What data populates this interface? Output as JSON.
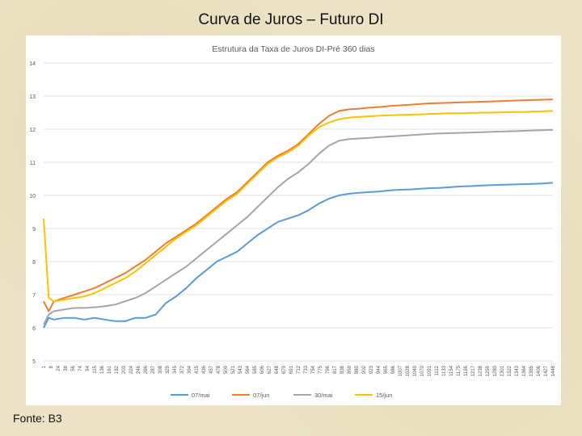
{
  "slide": {
    "title": "Curva de Juros – Futuro DI",
    "footer": "Fonte: B3"
  },
  "colors": {
    "07/mai": "#5b9bd5",
    "07/jun": "#ed7d31",
    "30/mai": "#a5a5a5",
    "15/jun": "#ffc000"
  },
  "chart_data": {
    "type": "line",
    "title": "Estrutura da Taxa de Juros DI-Pré 360 dias",
    "xlabel": "",
    "ylabel": "",
    "ylim": [
      5,
      14
    ],
    "yticks": [
      5,
      6,
      7,
      8,
      9,
      10,
      11,
      12,
      13,
      14
    ],
    "grid": true,
    "legend_position": "bottom",
    "x_tick_labels": [
      "1",
      "8",
      "24",
      "38",
      "56",
      "74",
      "94",
      "115",
      "136",
      "161",
      "182",
      "203",
      "224",
      "246",
      "266",
      "287",
      "308",
      "329",
      "345",
      "372",
      "394",
      "415",
      "436",
      "457",
      "478",
      "500",
      "521",
      "543",
      "564",
      "585",
      "606",
      "627",
      "648",
      "670",
      "691",
      "712",
      "733",
      "754",
      "775",
      "796",
      "817",
      "838",
      "859",
      "880",
      "902",
      "923",
      "944",
      "965",
      "986",
      "1007",
      "1028",
      "1049",
      "1070",
      "1091",
      "1112",
      "1133",
      "1154",
      "1175",
      "1196",
      "1217",
      "1238",
      "1259",
      "1280",
      "1301",
      "1322",
      "1343",
      "1364",
      "1385",
      "1406",
      "1427",
      "1448"
    ],
    "x": [
      0,
      0.01,
      0.02,
      0.04,
      0.06,
      0.08,
      0.1,
      0.12,
      0.14,
      0.16,
      0.18,
      0.2,
      0.22,
      0.24,
      0.26,
      0.28,
      0.3,
      0.32,
      0.34,
      0.36,
      0.38,
      0.4,
      0.42,
      0.44,
      0.46,
      0.48,
      0.5,
      0.52,
      0.54,
      0.56,
      0.58,
      0.6,
      0.62,
      0.64,
      0.66,
      0.68,
      0.7,
      0.72,
      0.74,
      0.76,
      0.78,
      0.8,
      0.82,
      0.84,
      0.86,
      0.88,
      0.9,
      0.92,
      0.94,
      0.96,
      0.98,
      1.0
    ],
    "series": [
      {
        "name": "07/mai",
        "values": [
          6.0,
          6.3,
          6.25,
          6.3,
          6.3,
          6.25,
          6.3,
          6.25,
          6.2,
          6.2,
          6.3,
          6.3,
          6.4,
          6.75,
          6.95,
          7.2,
          7.5,
          7.75,
          8.0,
          8.15,
          8.3,
          8.55,
          8.8,
          9.0,
          9.2,
          9.3,
          9.4,
          9.55,
          9.75,
          9.9,
          10.0,
          10.05,
          10.08,
          10.1,
          10.12,
          10.15,
          10.17,
          10.18,
          10.2,
          10.22,
          10.23,
          10.25,
          10.27,
          10.28,
          10.3,
          10.31,
          10.32,
          10.33,
          10.34,
          10.35,
          10.36,
          10.38
        ]
      },
      {
        "name": "07/jun",
        "values": [
          6.8,
          6.5,
          6.8,
          6.9,
          7.0,
          7.1,
          7.2,
          7.35,
          7.5,
          7.65,
          7.85,
          8.05,
          8.3,
          8.55,
          8.75,
          8.95,
          9.15,
          9.4,
          9.65,
          9.9,
          10.1,
          10.4,
          10.7,
          11.0,
          11.2,
          11.35,
          11.55,
          11.85,
          12.15,
          12.4,
          12.55,
          12.6,
          12.62,
          12.65,
          12.67,
          12.7,
          12.72,
          12.74,
          12.76,
          12.78,
          12.79,
          12.8,
          12.81,
          12.82,
          12.83,
          12.84,
          12.85,
          12.86,
          12.87,
          12.88,
          12.89,
          12.9
        ]
      },
      {
        "name": "30/mai",
        "values": [
          6.1,
          6.4,
          6.5,
          6.55,
          6.6,
          6.6,
          6.62,
          6.65,
          6.7,
          6.8,
          6.9,
          7.05,
          7.25,
          7.45,
          7.65,
          7.85,
          8.1,
          8.35,
          8.6,
          8.85,
          9.1,
          9.35,
          9.65,
          9.95,
          10.25,
          10.5,
          10.7,
          10.95,
          11.25,
          11.5,
          11.65,
          11.7,
          11.72,
          11.74,
          11.76,
          11.78,
          11.8,
          11.82,
          11.84,
          11.86,
          11.87,
          11.88,
          11.89,
          11.9,
          11.91,
          11.92,
          11.93,
          11.94,
          11.95,
          11.96,
          11.97,
          11.98
        ]
      },
      {
        "name": "15/jun",
        "values": [
          9.3,
          6.9,
          6.8,
          6.85,
          6.9,
          6.95,
          7.05,
          7.2,
          7.35,
          7.5,
          7.7,
          7.95,
          8.2,
          8.45,
          8.7,
          8.9,
          9.1,
          9.35,
          9.6,
          9.85,
          10.05,
          10.35,
          10.65,
          10.95,
          11.15,
          11.3,
          11.5,
          11.8,
          12.05,
          12.2,
          12.3,
          12.35,
          12.37,
          12.39,
          12.41,
          12.42,
          12.43,
          12.44,
          12.45,
          12.46,
          12.47,
          12.48,
          12.48,
          12.49,
          12.5,
          12.5,
          12.51,
          12.52,
          12.52,
          12.53,
          12.54,
          12.55
        ]
      }
    ]
  }
}
